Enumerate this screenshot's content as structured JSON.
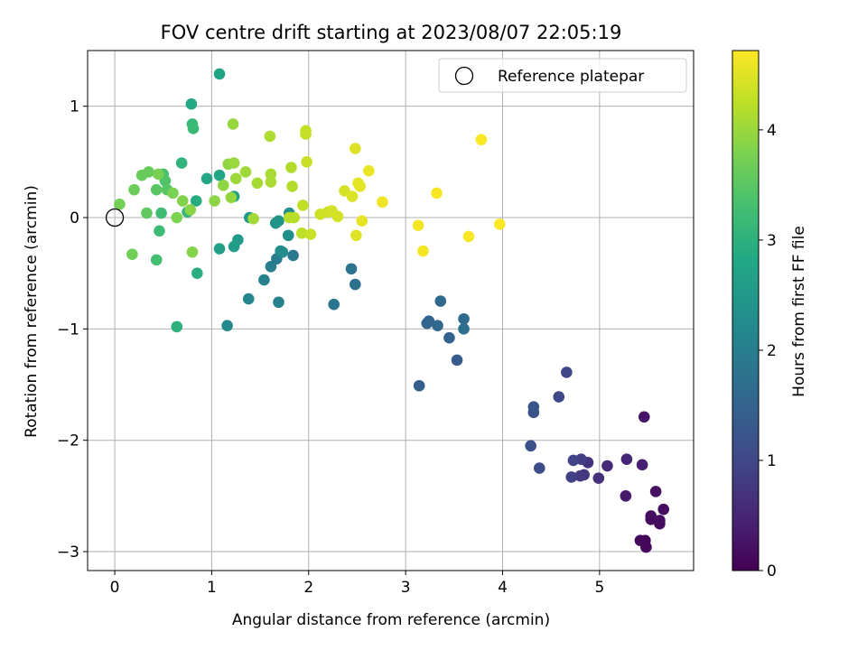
{
  "chart_data": {
    "type": "scatter",
    "title": "FOV centre drift starting at 2023/08/07 22:05:19",
    "xlabel": "Angular distance from reference (arcmin)",
    "ylabel": "Rotation from reference (arcmin)",
    "xlim": [
      -0.28,
      5.97
    ],
    "ylim": [
      -3.17,
      1.5
    ],
    "xticks": [
      0,
      1,
      2,
      3,
      4,
      5
    ],
    "yticks": [
      -3,
      -2,
      -1,
      0,
      1
    ],
    "grid": true,
    "legend": {
      "placement": "top-right",
      "entries": [
        "Reference platepar"
      ]
    },
    "reference_point": {
      "x": 0.0,
      "y": 0.0
    },
    "colorbar": {
      "label": "Hours from first FF file",
      "range": [
        0,
        4.72
      ],
      "ticks": [
        0,
        1,
        2,
        3,
        4
      ],
      "colormap": "viridis"
    },
    "points": [
      [
        5.47,
        -2.9,
        0.08
      ],
      [
        5.48,
        -2.96,
        0.08
      ],
      [
        5.42,
        -2.9,
        0.1
      ],
      [
        5.53,
        -2.71,
        0.12
      ],
      [
        5.53,
        -2.68,
        0.13
      ],
      [
        5.62,
        -2.75,
        0.15
      ],
      [
        5.62,
        -2.72,
        0.16
      ],
      [
        5.66,
        -2.62,
        0.18
      ],
      [
        5.58,
        -2.46,
        0.22
      ],
      [
        5.46,
        -1.79,
        0.28
      ],
      [
        5.27,
        -2.5,
        0.35
      ],
      [
        5.44,
        -2.22,
        0.42
      ],
      [
        5.28,
        -2.17,
        0.5
      ],
      [
        5.08,
        -2.23,
        0.58
      ],
      [
        4.99,
        -2.34,
        0.65
      ],
      [
        4.88,
        -2.2,
        0.7
      ],
      [
        4.84,
        -2.31,
        0.75
      ],
      [
        4.8,
        -2.32,
        0.8
      ],
      [
        4.81,
        -2.17,
        0.85
      ],
      [
        4.71,
        -2.33,
        0.9
      ],
      [
        4.73,
        -2.18,
        0.95
      ],
      [
        4.66,
        -1.39,
        1.0
      ],
      [
        4.58,
        -1.61,
        1.05
      ],
      [
        4.38,
        -2.25,
        1.1
      ],
      [
        4.29,
        -2.05,
        1.15
      ],
      [
        4.32,
        -1.75,
        1.2
      ],
      [
        4.32,
        -1.7,
        1.25
      ],
      [
        3.53,
        -1.28,
        1.35
      ],
      [
        3.14,
        -1.51,
        1.4
      ],
      [
        3.45,
        -1.08,
        1.45
      ],
      [
        3.24,
        -0.93,
        1.5
      ],
      [
        3.22,
        -0.95,
        1.55
      ],
      [
        3.33,
        -0.97,
        1.58
      ],
      [
        3.36,
        -0.75,
        1.6
      ],
      [
        3.6,
        -0.91,
        1.65
      ],
      [
        3.6,
        -1.0,
        1.7
      ],
      [
        2.48,
        -0.6,
        1.75
      ],
      [
        2.44,
        -0.46,
        1.8
      ],
      [
        2.26,
        -0.78,
        1.85
      ],
      [
        1.84,
        -0.34,
        1.9
      ],
      [
        1.67,
        -0.37,
        1.95
      ],
      [
        1.61,
        -0.44,
        2.0
      ],
      [
        1.69,
        -0.76,
        2.05
      ],
      [
        1.54,
        -0.56,
        2.1
      ],
      [
        1.38,
        -0.73,
        2.15
      ],
      [
        1.16,
        -0.97,
        2.2
      ],
      [
        1.73,
        -0.31,
        2.25
      ],
      [
        1.71,
        -0.3,
        2.28
      ],
      [
        1.79,
        -0.16,
        2.3
      ],
      [
        1.8,
        0.04,
        2.35
      ],
      [
        1.66,
        -0.05,
        2.4
      ],
      [
        1.69,
        -0.03,
        2.45
      ],
      [
        1.39,
        0.0,
        2.5
      ],
      [
        1.27,
        -0.2,
        2.55
      ],
      [
        1.23,
        -0.26,
        2.6
      ],
      [
        1.08,
        -0.28,
        2.65
      ],
      [
        1.23,
        0.19,
        2.7
      ],
      [
        1.08,
        0.38,
        2.75
      ],
      [
        1.08,
        1.29,
        2.78
      ],
      [
        0.95,
        0.35,
        2.8
      ],
      [
        0.79,
        1.02,
        2.85
      ],
      [
        0.84,
        0.15,
        2.9
      ],
      [
        0.85,
        -0.5,
        2.95
      ],
      [
        0.64,
        -0.98,
        3.0
      ],
      [
        0.69,
        0.49,
        3.05
      ],
      [
        0.75,
        0.05,
        3.1
      ],
      [
        0.8,
        0.84,
        3.15
      ],
      [
        0.81,
        0.8,
        3.18
      ],
      [
        0.46,
        -0.12,
        3.2
      ],
      [
        0.48,
        0.04,
        3.25
      ],
      [
        0.43,
        -0.38,
        3.3
      ],
      [
        0.5,
        0.39,
        3.35
      ],
      [
        0.52,
        0.33,
        3.4
      ],
      [
        0.54,
        0.25,
        3.45
      ],
      [
        0.43,
        0.25,
        3.5
      ],
      [
        0.33,
        0.04,
        3.55
      ],
      [
        0.35,
        0.41,
        3.6
      ],
      [
        0.28,
        0.38,
        3.62
      ],
      [
        0.2,
        0.25,
        3.65
      ],
      [
        0.18,
        -0.33,
        3.7
      ],
      [
        0.05,
        0.12,
        3.72
      ],
      [
        0.45,
        0.39,
        3.75
      ],
      [
        0.6,
        0.22,
        3.78
      ],
      [
        0.64,
        0.0,
        3.8
      ],
      [
        0.7,
        0.15,
        3.82
      ],
      [
        0.8,
        -0.31,
        3.85
      ],
      [
        0.78,
        0.07,
        3.88
      ],
      [
        1.03,
        0.15,
        3.9
      ],
      [
        1.12,
        0.29,
        3.92
      ],
      [
        1.17,
        0.48,
        3.94
      ],
      [
        1.2,
        0.18,
        3.96
      ],
      [
        1.22,
        0.84,
        3.98
      ],
      [
        1.23,
        0.49,
        4.0
      ],
      [
        1.25,
        0.35,
        4.02
      ],
      [
        1.35,
        0.41,
        4.04
      ],
      [
        1.43,
        -0.01,
        4.06
      ],
      [
        1.47,
        0.31,
        4.08
      ],
      [
        1.61,
        0.39,
        4.1
      ],
      [
        1.61,
        0.32,
        4.12
      ],
      [
        1.6,
        0.73,
        4.14
      ],
      [
        1.82,
        0.45,
        4.16
      ],
      [
        1.83,
        0.28,
        4.18
      ],
      [
        1.8,
        0.0,
        4.2
      ],
      [
        1.85,
        0.0,
        4.22
      ],
      [
        1.93,
        -0.14,
        4.24
      ],
      [
        1.94,
        0.11,
        4.26
      ],
      [
        1.97,
        0.78,
        4.28
      ],
      [
        1.97,
        0.75,
        4.3
      ],
      [
        1.98,
        0.5,
        4.32
      ],
      [
        2.02,
        -0.15,
        4.34
      ],
      [
        2.12,
        0.03,
        4.36
      ],
      [
        2.2,
        0.05,
        4.38
      ],
      [
        2.24,
        0.06,
        4.4
      ],
      [
        2.3,
        0.01,
        4.42
      ],
      [
        2.37,
        0.24,
        4.44
      ],
      [
        2.45,
        0.19,
        4.46
      ],
      [
        2.48,
        0.62,
        4.48
      ],
      [
        2.49,
        -0.16,
        4.5
      ],
      [
        2.51,
        0.31,
        4.52
      ],
      [
        2.53,
        0.28,
        4.54
      ],
      [
        2.55,
        -0.03,
        4.56
      ],
      [
        2.62,
        0.42,
        4.58
      ],
      [
        2.76,
        0.14,
        4.6
      ],
      [
        3.13,
        -0.07,
        4.64
      ],
      [
        3.18,
        -0.3,
        4.66
      ],
      [
        3.32,
        0.22,
        4.68
      ],
      [
        3.65,
        -0.17,
        4.69
      ],
      [
        3.78,
        0.7,
        4.7
      ],
      [
        3.97,
        -0.06,
        4.71
      ]
    ]
  }
}
